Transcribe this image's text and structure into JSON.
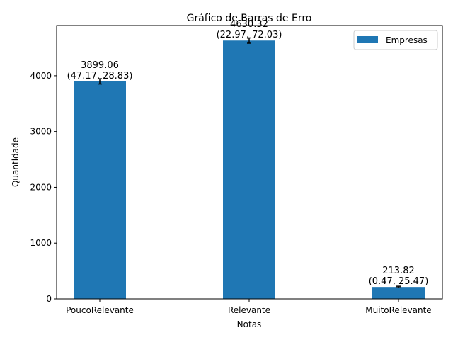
{
  "chart_data": {
    "type": "bar",
    "title": "Gráfico de Barras de Erro",
    "xlabel": "Notas",
    "ylabel": "Quantidade",
    "categories": [
      "PoucoRelevante",
      "Relevante",
      "MuitoRelevante"
    ],
    "series": [
      {
        "name": "Empresas",
        "color": "#1f77b4",
        "values": [
          3899.06,
          4630.32,
          213.82
        ],
        "errors": [
          47.17,
          47.5,
          12.97
        ],
        "value_labels": [
          "3899.06",
          "4630.32",
          "213.82"
        ],
        "interval_labels": [
          "(47.17, 28.83)",
          "(22.97, 72.03)",
          "(0.47, 25.47)"
        ]
      }
    ],
    "ylim": [
      0,
      4900
    ],
    "yticks": [
      0,
      1000,
      2000,
      3000,
      4000
    ],
    "ytick_labels": [
      "0",
      "1000",
      "2000",
      "3000",
      "4000"
    ],
    "grid": false,
    "legend_position": "top-right"
  }
}
